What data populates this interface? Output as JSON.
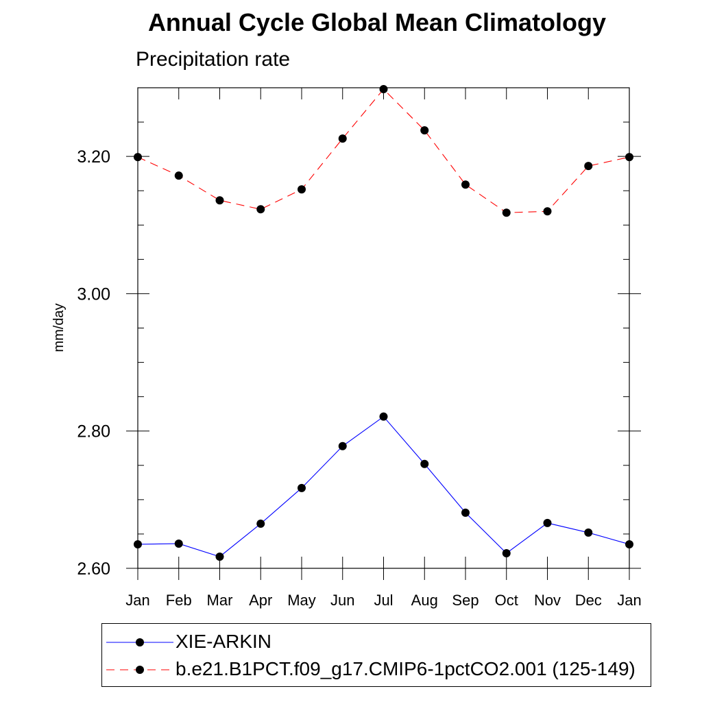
{
  "chart_data": {
    "type": "line",
    "title": "Annual Cycle Global Mean Climatology",
    "subtitle": "Precipitation rate",
    "xlabel": "",
    "ylabel": "mm/day",
    "categories": [
      "Jan",
      "Feb",
      "Mar",
      "Apr",
      "May",
      "Jun",
      "Jul",
      "Aug",
      "Sep",
      "Oct",
      "Nov",
      "Dec",
      "Jan"
    ],
    "ylim": [
      2.6,
      3.3
    ],
    "y_major_ticks": [
      2.6,
      2.8,
      3.0,
      3.2
    ],
    "y_tick_labels": [
      "2.60",
      "2.80",
      "3.00",
      "3.20"
    ],
    "y_minor_step": 0.05,
    "series": [
      {
        "name": "XIE-ARKIN",
        "color": "#0000ff",
        "dash": "solid",
        "values": [
          2.635,
          2.636,
          2.617,
          2.665,
          2.717,
          2.778,
          2.821,
          2.752,
          2.681,
          2.622,
          2.666,
          2.652,
          2.635
        ]
      },
      {
        "name": "b.e21.B1PCT.f09_g17.CMIP6-1pctCO2.001 (125-149)",
        "color": "#ff0000",
        "dash": "dashed",
        "values": [
          3.199,
          3.172,
          3.136,
          3.123,
          3.152,
          3.226,
          3.298,
          3.238,
          3.159,
          3.118,
          3.12,
          3.186,
          3.199
        ]
      }
    ]
  }
}
